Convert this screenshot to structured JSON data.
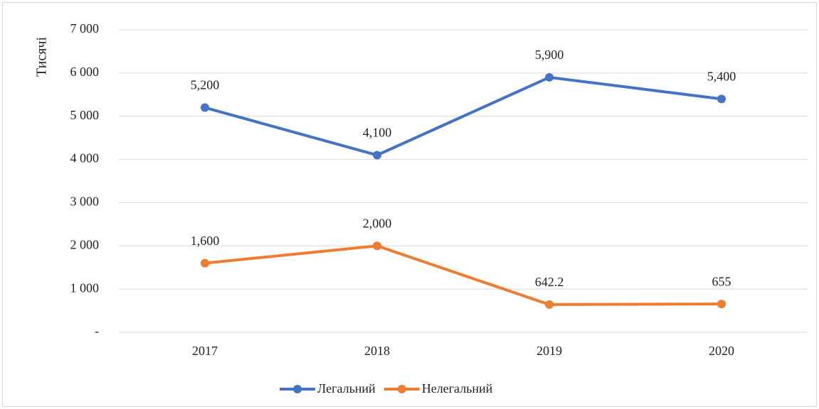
{
  "chart_data": {
    "type": "line",
    "y_axis_label": "Тисячі",
    "categories": [
      "2017",
      "2018",
      "2019",
      "2020"
    ],
    "series": [
      {
        "name": "Легальний",
        "color": "#4472c4",
        "values": [
          5200,
          4100,
          5900,
          5400
        ],
        "value_labels": [
          "5,200",
          "4,100",
          "5,900",
          "5,400"
        ]
      },
      {
        "name": "Нелегальний",
        "color": "#ed7d31",
        "values": [
          1600,
          2000,
          642.2,
          655
        ],
        "value_labels": [
          "1,600",
          "2,000",
          "642.2",
          "655"
        ]
      }
    ],
    "ylim": [
      0,
      7000
    ],
    "yticks": [
      {
        "value": 0,
        "label": "-"
      },
      {
        "value": 1000,
        "label": "1 000"
      },
      {
        "value": 2000,
        "label": "2 000"
      },
      {
        "value": 3000,
        "label": "3 000"
      },
      {
        "value": 4000,
        "label": "4 000"
      },
      {
        "value": 5000,
        "label": "5 000"
      },
      {
        "value": 6000,
        "label": "6 000"
      },
      {
        "value": 7000,
        "label": "7 000"
      }
    ],
    "grid": true,
    "legend": "bottom"
  }
}
